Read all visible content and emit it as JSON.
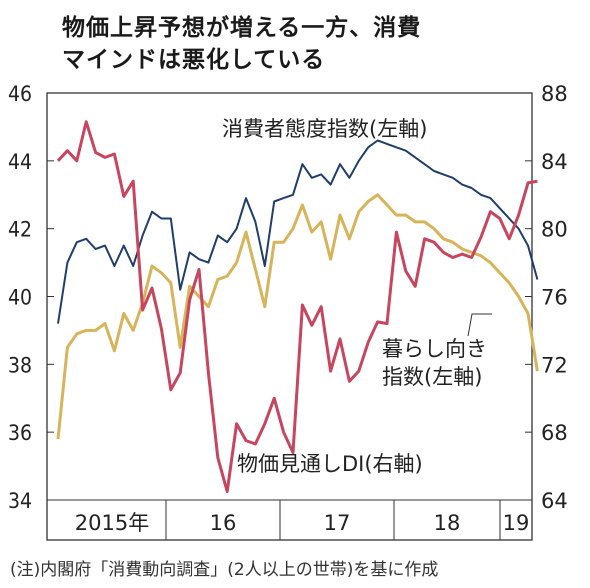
{
  "title_line1": "物価上昇予想が増える一方、消費",
  "title_line2": "マインドは悪化している",
  "note": "(注)内閣府「消費動向調査」(2人以上の世帯)を基に作成",
  "colors": {
    "consumer_confidence": "#1f3e6b",
    "livelihood": "#d7b45a",
    "price_di": "#c8455e",
    "axis": "#333333"
  },
  "chart_data": {
    "type": "line",
    "x_labels": [
      "2015年",
      "16",
      "17",
      "18",
      "19"
    ],
    "left_axis": {
      "ylim": [
        34,
        46
      ],
      "ticks": [
        "34",
        "36",
        "38",
        "40",
        "42",
        "44",
        "46"
      ]
    },
    "right_axis": {
      "ylim": [
        64,
        88
      ],
      "ticks": [
        "64",
        "68",
        "72",
        "76",
        "80",
        "84",
        "88"
      ]
    },
    "series": [
      {
        "name": "消費者態度指数(左軸)",
        "axis": "left",
        "values": [
          39.2,
          41.0,
          41.6,
          41.7,
          41.4,
          41.5,
          40.9,
          41.5,
          40.9,
          41.8,
          42.5,
          42.3,
          42.3,
          40.2,
          41.3,
          41.1,
          41.0,
          41.8,
          41.6,
          42.0,
          42.9,
          42.2,
          40.9,
          42.8,
          42.9,
          43.0,
          43.9,
          43.5,
          43.6,
          43.3,
          43.9,
          43.5,
          44.0,
          44.4,
          44.6,
          44.5,
          44.4,
          44.3,
          44.1,
          43.9,
          43.7,
          43.6,
          43.5,
          43.3,
          43.2,
          43.0,
          42.9,
          42.6,
          42.3,
          42.0,
          41.5,
          40.5
        ]
      },
      {
        "name": "暮らし向き指数(左軸)",
        "axis": "left",
        "values": [
          35.8,
          38.5,
          38.9,
          39.0,
          39.0,
          39.2,
          38.4,
          39.5,
          39.0,
          39.8,
          40.9,
          40.7,
          40.4,
          38.5,
          40.3,
          40.0,
          39.7,
          40.5,
          40.6,
          41.0,
          41.9,
          40.8,
          39.7,
          41.6,
          41.6,
          42.0,
          42.7,
          41.9,
          42.2,
          41.1,
          42.4,
          41.7,
          42.5,
          42.8,
          43.0,
          42.7,
          42.4,
          42.4,
          42.2,
          42.2,
          42.0,
          41.7,
          41.6,
          41.4,
          41.3,
          41.2,
          41.0,
          40.7,
          40.4,
          40.0,
          39.5,
          37.8
        ]
      },
      {
        "name": "物価見通しDI(右軸)",
        "axis": "right",
        "values": [
          84.0,
          84.6,
          84.0,
          86.3,
          84.5,
          84.2,
          84.4,
          81.9,
          82.8,
          75.2,
          76.5,
          74.1,
          70.5,
          71.5,
          75.8,
          77.6,
          71.5,
          66.5,
          64.5,
          68.5,
          67.5,
          67.3,
          68.5,
          70.0,
          68.0,
          66.8,
          75.5,
          74.3,
          75.4,
          71.6,
          73.5,
          71.0,
          71.6,
          73.3,
          74.5,
          74.4,
          79.8,
          77.5,
          76.6,
          79.4,
          79.2,
          78.6,
          78.3,
          78.5,
          78.3,
          79.5,
          81.0,
          80.6,
          79.4,
          80.8,
          82.7,
          82.8
        ]
      }
    ],
    "series_labels": [
      {
        "series": 0,
        "lines": [
          "消費者態度指数(左軸)"
        ]
      },
      {
        "series": 1,
        "lines": [
          "暮らし向き",
          "指数(左軸)"
        ]
      },
      {
        "series": 2,
        "lines": [
          "物価見通しDI(右軸)"
        ]
      }
    ],
    "grid": false,
    "legend": "inline"
  }
}
